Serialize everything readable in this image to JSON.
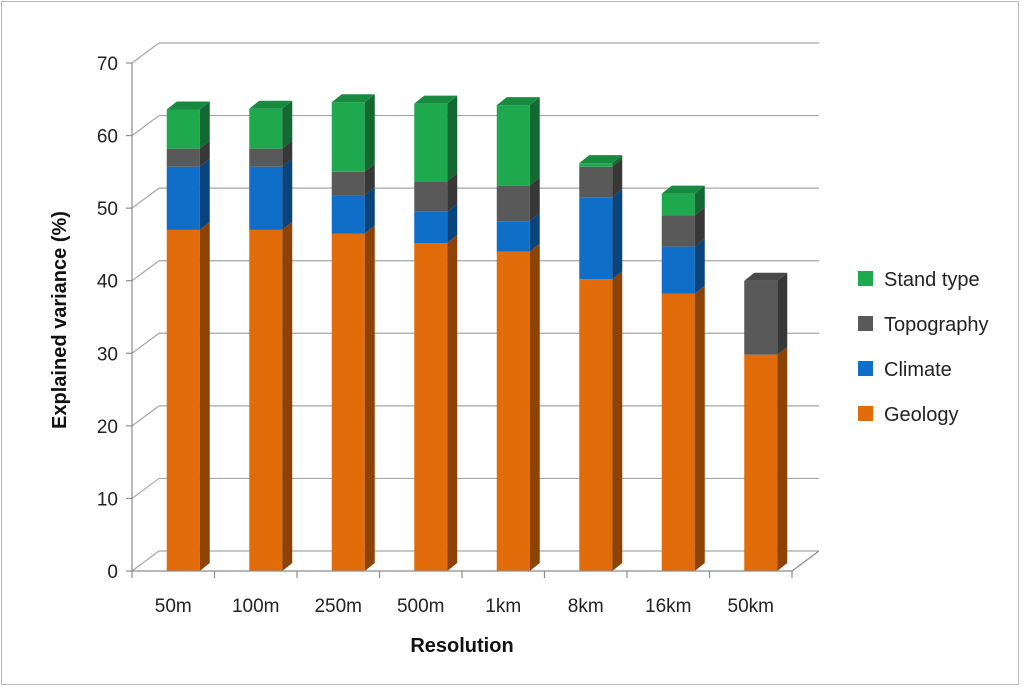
{
  "chart_data": {
    "type": "bar",
    "stacked": true,
    "style": "3d-column",
    "xlabel": "Resolution",
    "ylabel": "Explained variance (%)",
    "ylim": [
      0,
      70
    ],
    "yticks": [
      0,
      10,
      20,
      30,
      40,
      50,
      60,
      70
    ],
    "grid": true,
    "legend_position": "right",
    "categories": [
      "50m",
      "100m",
      "250m",
      "500m",
      "1km",
      "8km",
      "16km",
      "50km"
    ],
    "series": [
      {
        "name": "Geology",
        "color": "#e36c0a",
        "values": [
          47.0,
          47.0,
          46.5,
          45.2,
          44.0,
          40.2,
          38.2,
          29.8
        ]
      },
      {
        "name": "Climate",
        "color": "#0e6ec8",
        "values": [
          8.7,
          8.7,
          5.3,
          4.3,
          4.2,
          11.3,
          6.5,
          0
        ]
      },
      {
        "name": "Topography",
        "color": "#595959",
        "values": [
          2.5,
          2.5,
          3.2,
          4.2,
          4.9,
          4.2,
          4.3,
          10.2
        ]
      },
      {
        "name": "Stand type",
        "color": "#1ea94f",
        "values": [
          5.4,
          5.5,
          9.6,
          10.7,
          11.1,
          0.5,
          3.0,
          0
        ]
      }
    ]
  }
}
